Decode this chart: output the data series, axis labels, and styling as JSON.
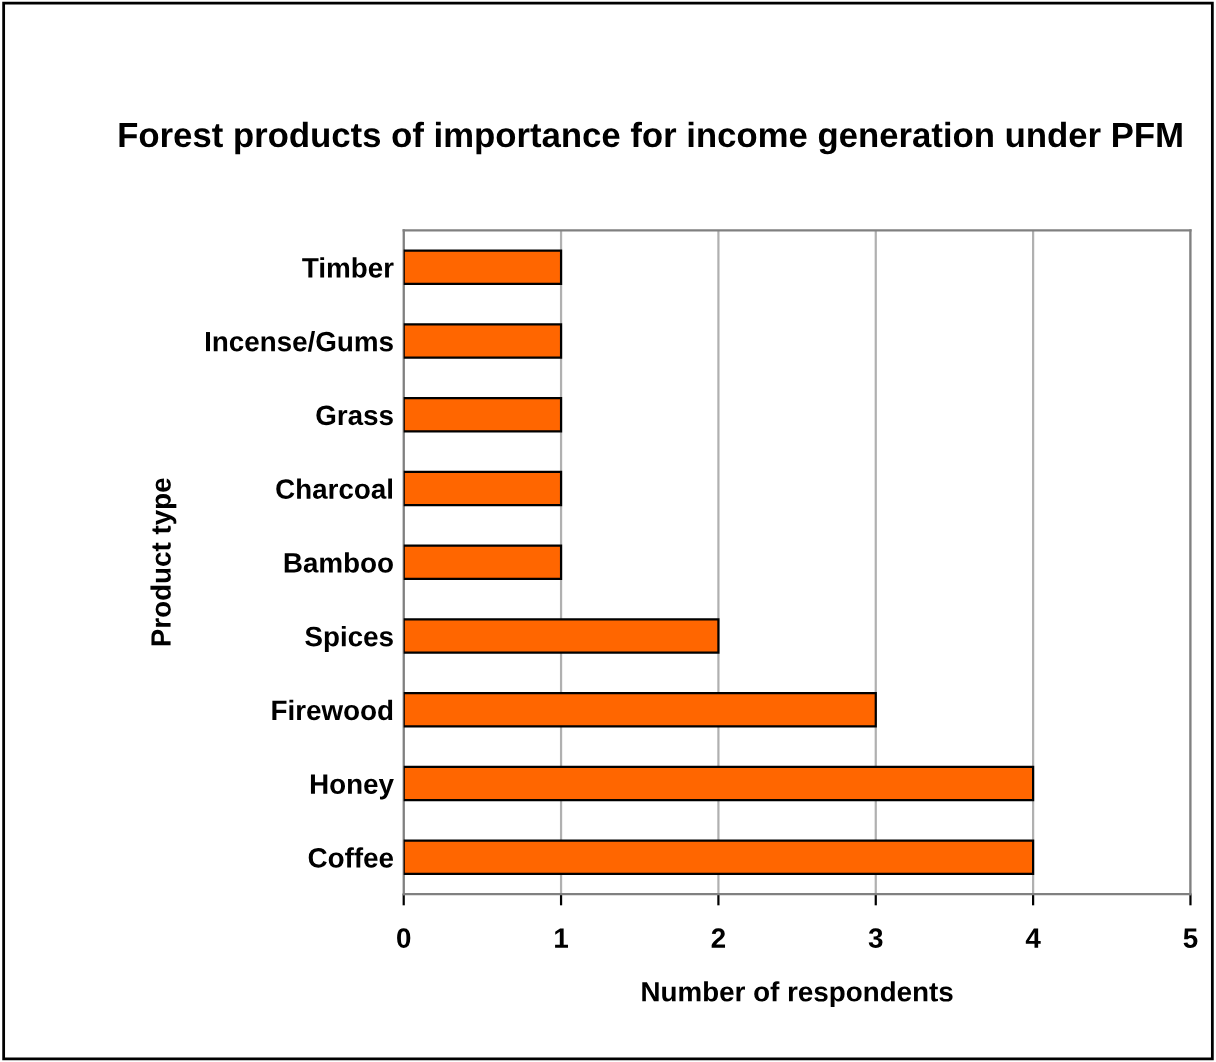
{
  "chart_data": {
    "type": "bar",
    "orientation": "horizontal",
    "title": "Forest products of importance for income generation under PFM",
    "xlabel": "Number of respondents",
    "ylabel": "Product type",
    "categories": [
      "Timber",
      "Incense/Gums",
      "Grass",
      "Charcoal",
      "Bamboo",
      "Spices",
      "Firewood",
      "Honey",
      "Coffee"
    ],
    "values": [
      1,
      1,
      1,
      1,
      1,
      2,
      3,
      4,
      4
    ],
    "color": "#ff6600",
    "xlim": [
      0,
      5
    ],
    "xticks": [
      0,
      1,
      2,
      3,
      4,
      5
    ],
    "grid": "x",
    "legend": false
  }
}
